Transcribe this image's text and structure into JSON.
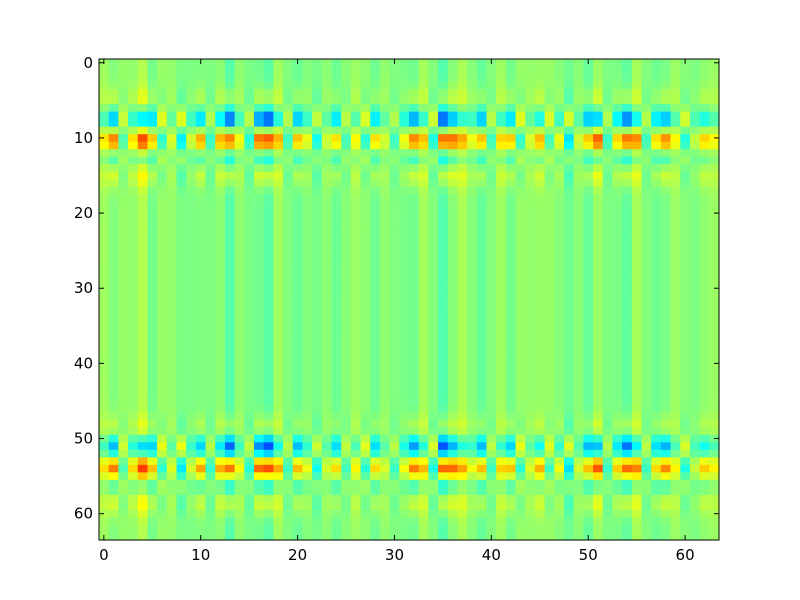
{
  "chart_data": {
    "type": "heatmap",
    "title": "",
    "xlabel": "",
    "ylabel": "",
    "xlim": [
      -0.5,
      63.5
    ],
    "ylim": [
      63.5,
      -0.5
    ],
    "x_ticks": [
      0,
      10,
      20,
      30,
      40,
      50,
      60
    ],
    "y_ticks": [
      0,
      10,
      20,
      30,
      40,
      50,
      60
    ],
    "x_tick_labels": [
      "0",
      "10",
      "20",
      "30",
      "40",
      "50",
      "60"
    ],
    "y_tick_labels": [
      "0",
      "10",
      "20",
      "30",
      "40",
      "50",
      "60"
    ],
    "grid": false,
    "colormap": "jet",
    "value_range": [
      -1,
      1
    ],
    "background_value": 0.02,
    "grid_size": [
      64,
      64
    ],
    "column_amplitude": [
      0.35,
      0.7,
      -0.2,
      0.4,
      0.75,
      0.55,
      -0.3,
      0.2,
      -0.4,
      0.25,
      0.6,
      -0.2,
      0.55,
      0.85,
      0.3,
      -0.25,
      0.8,
      0.95,
      0.5,
      -0.2,
      0.6,
      0.3,
      -0.3,
      0.2,
      0.5,
      -0.2,
      0.3,
      -0.3,
      0.5,
      0.2,
      -0.2,
      0.35,
      0.75,
      0.45,
      -0.3,
      0.9,
      0.75,
      0.5,
      0.3,
      0.6,
      -0.2,
      0.4,
      0.55,
      -0.3,
      0.2,
      0.5,
      -0.25,
      0.3,
      -0.4,
      0.2,
      0.6,
      0.75,
      -0.2,
      0.5,
      0.85,
      0.6,
      -0.2,
      0.5,
      0.7,
      0.3,
      -0.3,
      0.2,
      0.45,
      0.3
    ],
    "band_rows": [
      10.2,
      53.8
    ],
    "band_width": 1.4,
    "band_pattern": [
      {
        "offset": -2.5,
        "weight": -0.85
      },
      {
        "offset": 0.0,
        "weight": 1.0
      },
      {
        "offset": 2.4,
        "weight": -0.55
      },
      {
        "offset": 4.0,
        "weight": 0.4
      },
      {
        "offset": -4.5,
        "weight": 0.3
      }
    ],
    "stripe_amplitude": 0.12
  },
  "colors": {
    "axes_edge": "#000000",
    "background": "#ffffff"
  }
}
